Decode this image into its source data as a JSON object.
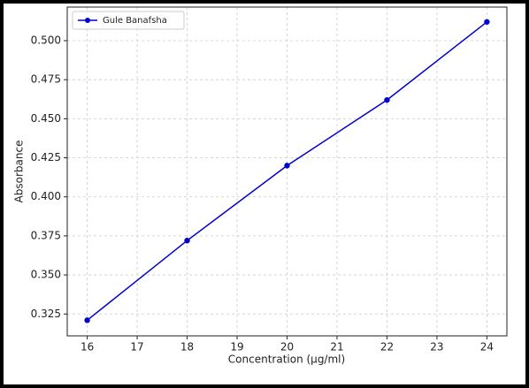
{
  "chart_data": {
    "type": "line",
    "xlabel": "Concentration (µg/ml)",
    "ylabel": "Absorbance",
    "x": [
      16,
      18,
      20,
      22,
      24
    ],
    "series": [
      {
        "name": "Gule Banafsha",
        "color": "#0000cd",
        "values": [
          0.321,
          0.372,
          0.42,
          0.462,
          0.512
        ]
      }
    ],
    "xlim": [
      15.6,
      24.4
    ],
    "xticks": [
      16,
      17,
      18,
      19,
      20,
      21,
      22,
      23,
      24
    ],
    "ylim": [
      0.311,
      0.5215
    ],
    "yticks": [
      0.325,
      {
        "value": 0.35,
        "label": "0.350"
      },
      0.375,
      {
        "value": 0.4,
        "label": "0.400"
      },
      0.425,
      {
        "value": 0.45,
        "label": "0.450"
      },
      0.475,
      {
        "value": 0.5,
        "label": "0.500"
      }
    ],
    "grid": true,
    "legend": "upper left"
  }
}
